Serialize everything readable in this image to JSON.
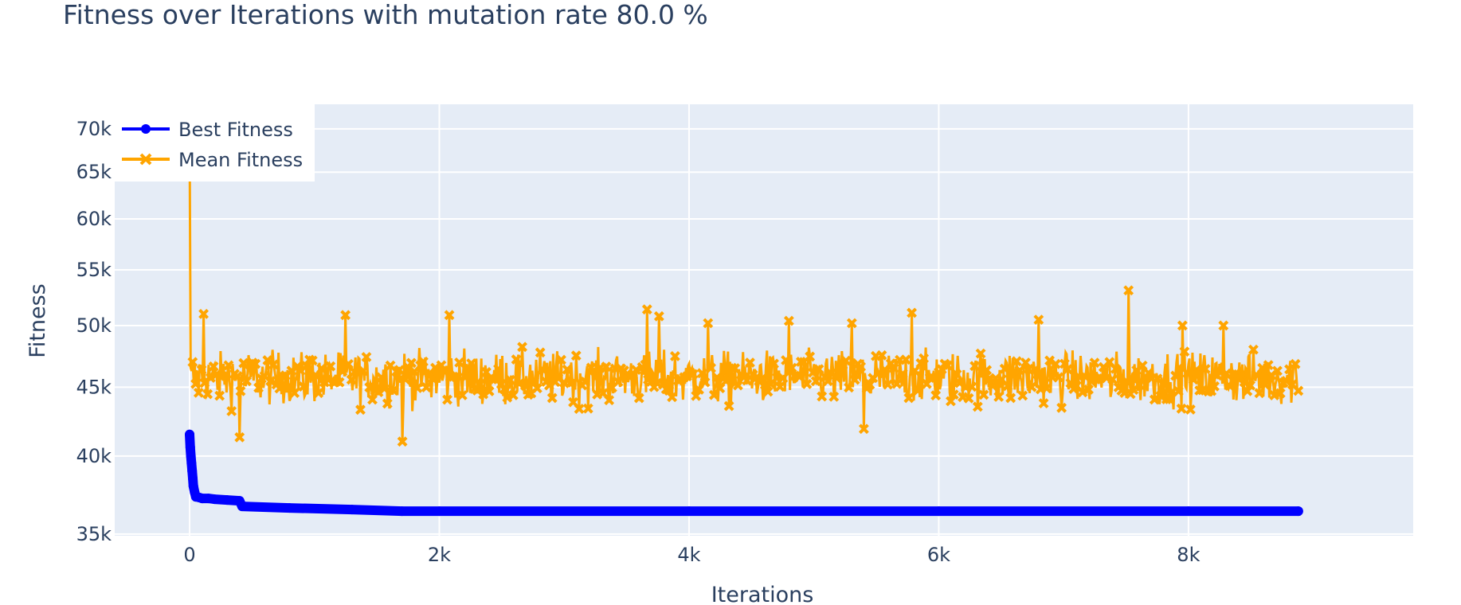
{
  "title": "Fitness over Iterations with mutation rate 80.0 %",
  "chart_data": {
    "type": "line",
    "title": "Fitness over Iterations with mutation rate 80.0 %",
    "xlabel": "Iterations",
    "ylabel": "Fitness",
    "x_scale": "linear",
    "y_scale": "log",
    "xlim": [
      -600,
      9800
    ],
    "ylim": [
      34900,
      73000
    ],
    "x_ticks": [
      0,
      2000,
      4000,
      6000,
      8000
    ],
    "x_tick_labels": [
      "0",
      "2k",
      "4k",
      "6k",
      "8k"
    ],
    "y_ticks": [
      35000,
      40000,
      45000,
      50000,
      55000,
      60000,
      65000,
      70000
    ],
    "y_tick_labels": [
      "35k",
      "40k",
      "45k",
      "50k",
      "55k",
      "60k",
      "65k",
      "70k"
    ],
    "grid": true,
    "legend_position": "top-left",
    "plot_background": "#e5ecf6",
    "series": [
      {
        "name": "Best Fitness",
        "color": "#0000ff",
        "marker": "circle",
        "iterations": 8880,
        "x": [
          0,
          5,
          10,
          15,
          20,
          25,
          30,
          40,
          50,
          60,
          80,
          100,
          150,
          200,
          300,
          400,
          420,
          800,
          1300,
          1700,
          2000,
          4000,
          6000,
          8000,
          8880
        ],
        "values": [
          41500,
          40600,
          40000,
          39500,
          39000,
          38500,
          38000,
          37600,
          37300,
          37300,
          37250,
          37200,
          37200,
          37150,
          37100,
          37050,
          36700,
          36600,
          36500,
          36400,
          36400,
          36400,
          36400,
          36400,
          36400
        ]
      },
      {
        "name": "Mean Fitness",
        "color": "#ffa500",
        "marker": "x",
        "iterations": 8880,
        "initial_value": 70000,
        "typical_range": [
          43000,
          48500
        ],
        "spikes": [
          {
            "x": 110,
            "y": 51000
          },
          {
            "x": 400,
            "y": 41300
          },
          {
            "x": 1250,
            "y": 50900
          },
          {
            "x": 1700,
            "y": 41000
          },
          {
            "x": 2080,
            "y": 50900
          },
          {
            "x": 3660,
            "y": 51400
          },
          {
            "x": 3760,
            "y": 50800
          },
          {
            "x": 4150,
            "y": 50200
          },
          {
            "x": 4800,
            "y": 50400
          },
          {
            "x": 5300,
            "y": 50200
          },
          {
            "x": 5400,
            "y": 41900
          },
          {
            "x": 5780,
            "y": 51100
          },
          {
            "x": 6800,
            "y": 50500
          },
          {
            "x": 7520,
            "y": 53100
          },
          {
            "x": 7950,
            "y": 50000
          },
          {
            "x": 8280,
            "y": 50000
          }
        ]
      }
    ]
  }
}
